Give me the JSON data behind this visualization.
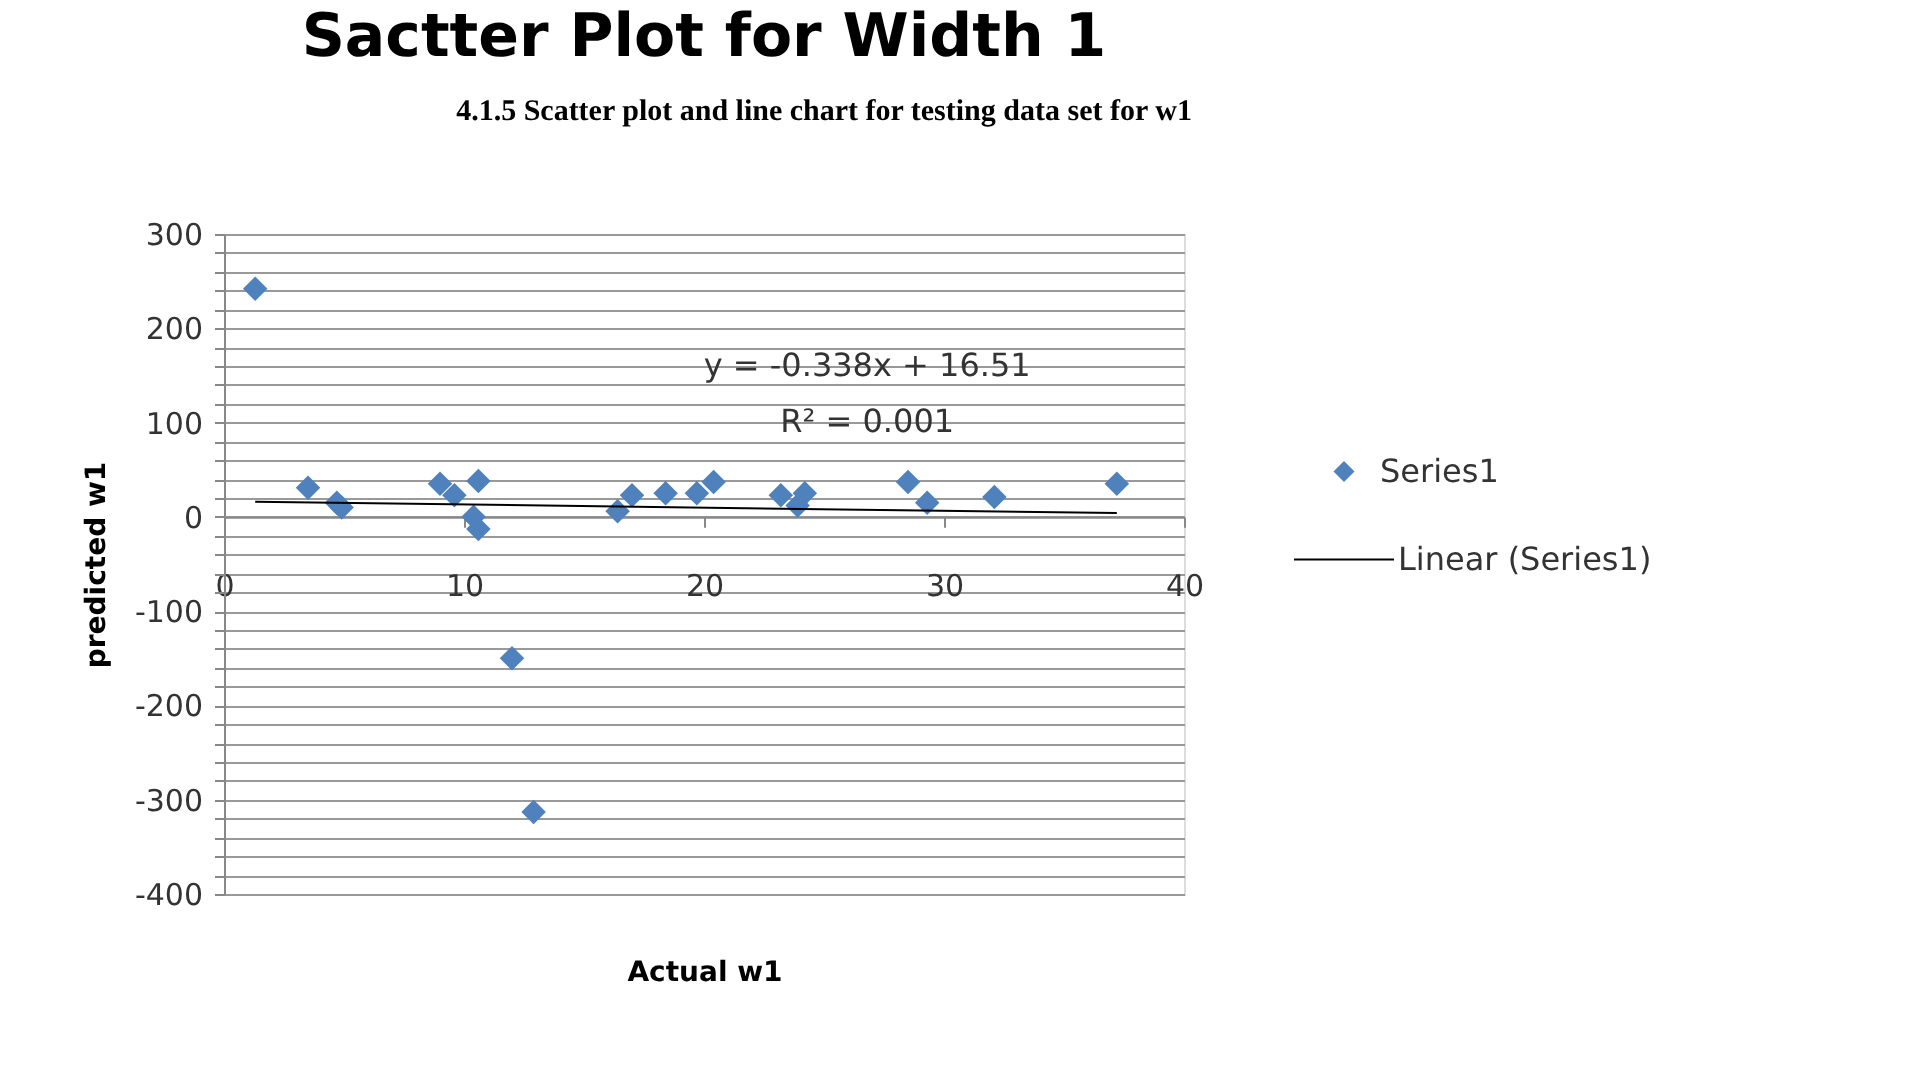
{
  "chart_data": {
    "type": "scatter",
    "title": "Sactter Plot for Width 1",
    "xlabel": "Actual w1",
    "ylabel": "predicted w1",
    "annotations": [
      "4.1.5 Scatter plot and line chart for testing data set for w1",
      "y = -0.338x + 16.51",
      "R² = 0.001"
    ],
    "series": [
      {
        "name": "Series1",
        "color": "#4f81bd",
        "marker": "diamond",
        "x": [
          1.3,
          3.5,
          4.7,
          4.9,
          9.0,
          9.6,
          10.6,
          10.4,
          10.6,
          12.0,
          12.9,
          16.4,
          17.0,
          18.4,
          19.7,
          20.4,
          23.2,
          23.9,
          24.2,
          28.5,
          29.3,
          32.1,
          37.2
        ],
        "values": [
          242,
          31,
          15,
          10,
          35,
          23,
          38,
          0,
          -13,
          -150,
          -313,
          6,
          23,
          25,
          25,
          37,
          23,
          12,
          25,
          37,
          15,
          21,
          35
        ]
      },
      {
        "name": "Linear (Series1)",
        "type": "line",
        "color": "#000000",
        "marker": "none",
        "line_style": "solid",
        "x": [
          1.3,
          37.2
        ],
        "values": [
          16,
          4
        ]
      }
    ],
    "xlim": [
      0,
      40
    ],
    "xticks": [
      0,
      10,
      20,
      30,
      40
    ],
    "ylim": [
      -400,
      300
    ],
    "yticks": [
      -400,
      {
        "value": -380,
        "label": null
      },
      {
        "value": -360,
        "label": null
      },
      {
        "value": -340,
        "label": null
      },
      {
        "value": -320,
        "label": null
      },
      -300,
      {
        "value": -280,
        "label": null
      },
      {
        "value": -260,
        "label": null
      },
      {
        "value": -240,
        "label": null
      },
      {
        "value": -220,
        "label": null
      },
      -200,
      {
        "value": -180,
        "label": null
      },
      {
        "value": -160,
        "label": null
      },
      {
        "value": -140,
        "label": null
      },
      {
        "value": -120,
        "label": null
      },
      -100,
      {
        "value": -80,
        "label": null
      },
      {
        "value": -60,
        "label": null
      },
      {
        "value": -40,
        "label": null
      },
      {
        "value": -20,
        "label": null
      },
      0,
      {
        "value": 20,
        "label": null
      },
      {
        "value": 40,
        "label": null
      },
      {
        "value": 60,
        "label": null
      },
      {
        "value": 80,
        "label": null
      },
      100,
      {
        "value": 120,
        "label": null
      },
      {
        "value": 140,
        "label": null
      },
      {
        "value": 160,
        "label": null
      },
      {
        "value": 180,
        "label": null
      },
      200,
      {
        "value": 220,
        "label": null
      },
      {
        "value": 240,
        "label": null
      },
      {
        "value": 260,
        "label": null
      },
      {
        "value": 280,
        "label": null
      },
      300
    ],
    "grid": "y",
    "legend": "right"
  }
}
